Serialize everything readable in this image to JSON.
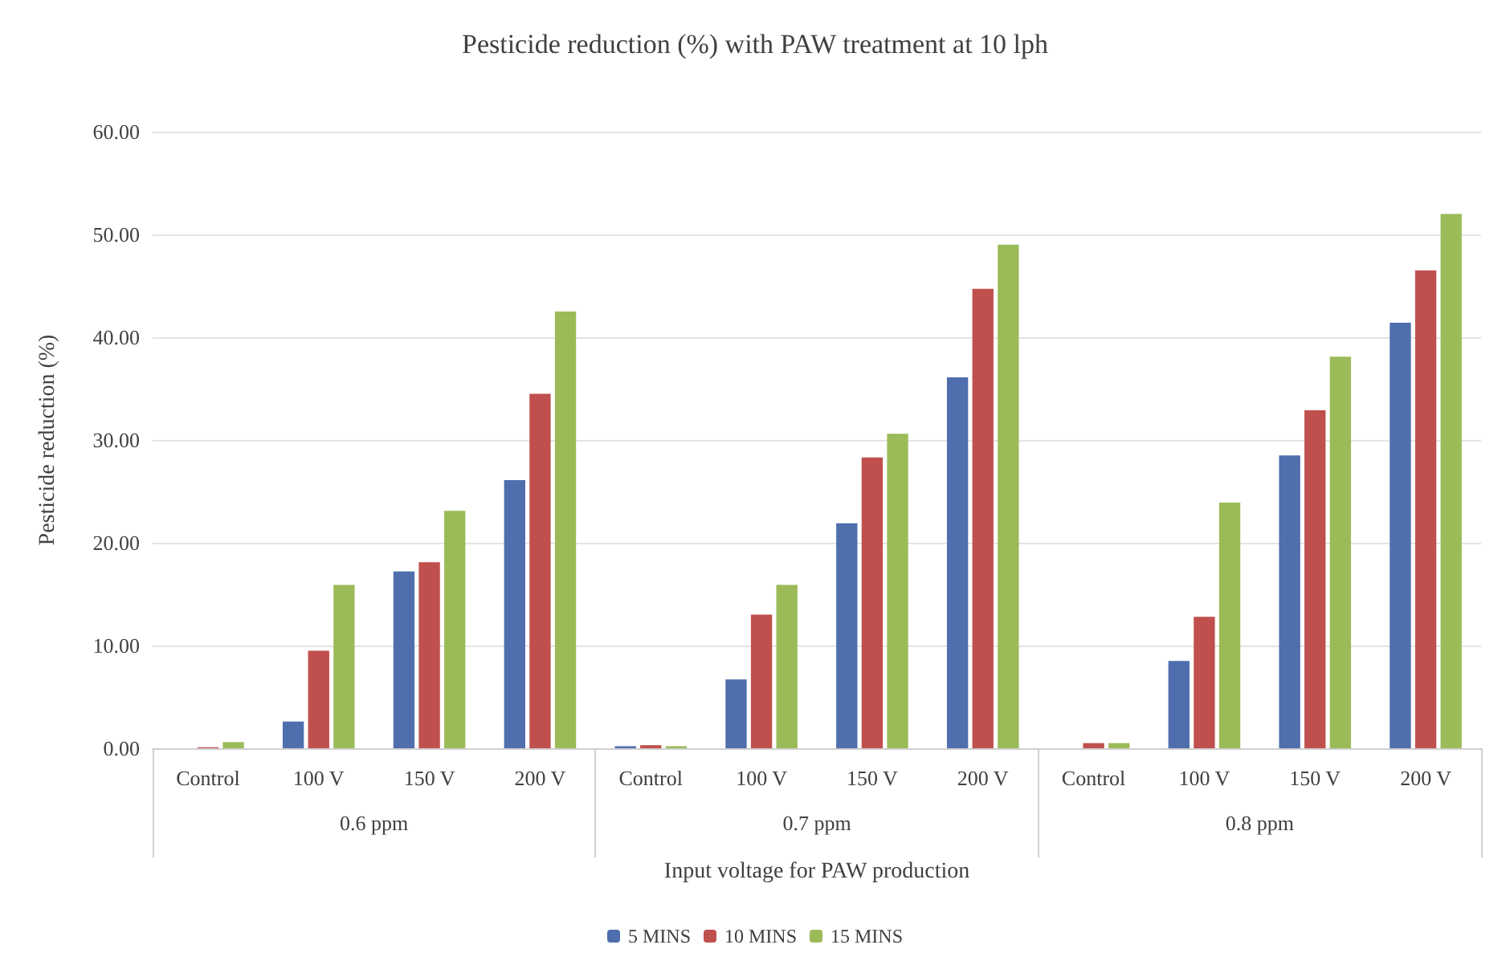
{
  "chart_data": {
    "type": "bar",
    "title": "Pesticide reduction (%) with PAW treatment at 10 lph",
    "xlabel": "Input voltage for PAW production",
    "ylabel": "Pesticide reduction (%)",
    "categories": [
      "Control",
      "100 V",
      "150 V",
      "200 V",
      "Control",
      "100 V",
      "150 V",
      "200 V",
      "Control",
      "100 V",
      "150 V",
      "200 V"
    ],
    "annotations": [
      "0.6 ppm",
      "0.7 ppm",
      "0.8 ppm"
    ],
    "series": [
      {
        "name": "5 MINS",
        "color": "#4f6eae",
        "values": [
          0,
          2.6,
          17.2,
          26.1,
          0.2,
          6.7,
          21.9,
          36.1,
          0,
          8.5,
          28.5,
          41.4
        ]
      },
      {
        "name": "10 MINS",
        "color": "#c0504d",
        "values": [
          0.1,
          9.5,
          18.1,
          34.5,
          0.3,
          13.0,
          28.3,
          44.7,
          0.5,
          12.8,
          32.9,
          46.5
        ]
      },
      {
        "name": "15 MINS",
        "color": "#9bbb59",
        "values": [
          0.6,
          15.9,
          23.1,
          42.5,
          0.2,
          15.9,
          30.6,
          49.0,
          0.5,
          23.9,
          38.1,
          52.0
        ]
      }
    ],
    "ylim": [
      0,
      60
    ],
    "yticks": [
      {
        "value": 0,
        "label": "0.00"
      },
      {
        "value": 10,
        "label": "10.00"
      },
      {
        "value": 20,
        "label": "20.00"
      },
      {
        "value": 30,
        "label": "30.00"
      },
      {
        "value": 40,
        "label": "40.00"
      },
      {
        "value": 50,
        "label": "50.00"
      },
      {
        "value": 60,
        "label": "60.00"
      }
    ],
    "grid": "y",
    "legend": "bottom"
  }
}
